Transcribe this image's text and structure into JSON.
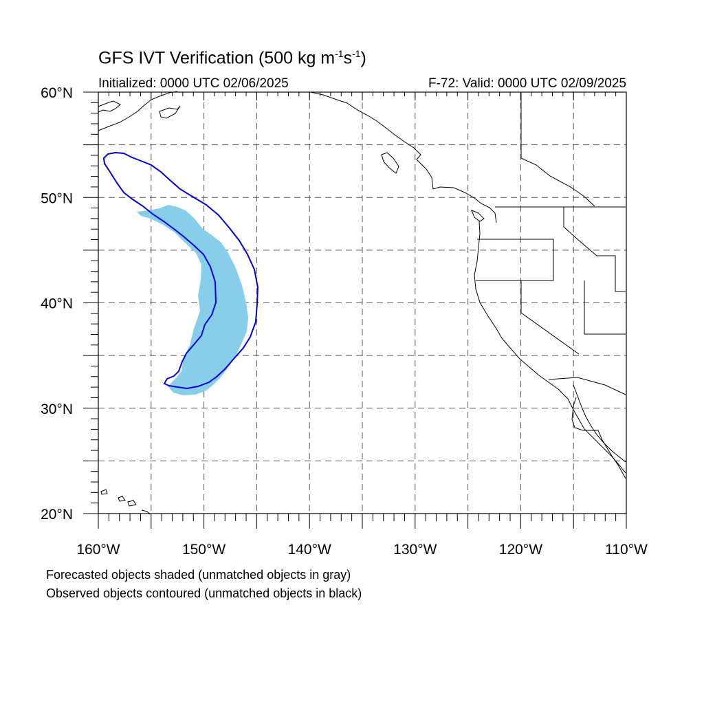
{
  "header": {
    "title_main": "GFS IVT Verification (500 kg m",
    "title_exp1": "-1",
    "title_mid": "s",
    "title_exp2": "-1",
    "title_end": ")",
    "initialized": "Initialized: 0000 UTC 02/06/2025",
    "valid": "F-72: Valid: 0000 UTC 02/09/2025"
  },
  "map": {
    "lon_range": [
      -160,
      -110
    ],
    "lat_range": [
      20,
      60
    ],
    "lat_labels": [
      "20°N",
      "30°N",
      "40°N",
      "50°N",
      "60°N"
    ],
    "lon_labels": [
      "160°W",
      "150°W",
      "140°W",
      "130°W",
      "120°W",
      "110°W"
    ],
    "grid": "dashed every 5°",
    "forecast_object_color": "#87CEEB",
    "observed_contour_color": "#0000DD",
    "coastline_color": "#000000"
  },
  "legend": {
    "line1": "Forecasted objects shaded (unmatched objects in gray)",
    "line2": "Observed objects contoured (unmatched objects in black)"
  }
}
